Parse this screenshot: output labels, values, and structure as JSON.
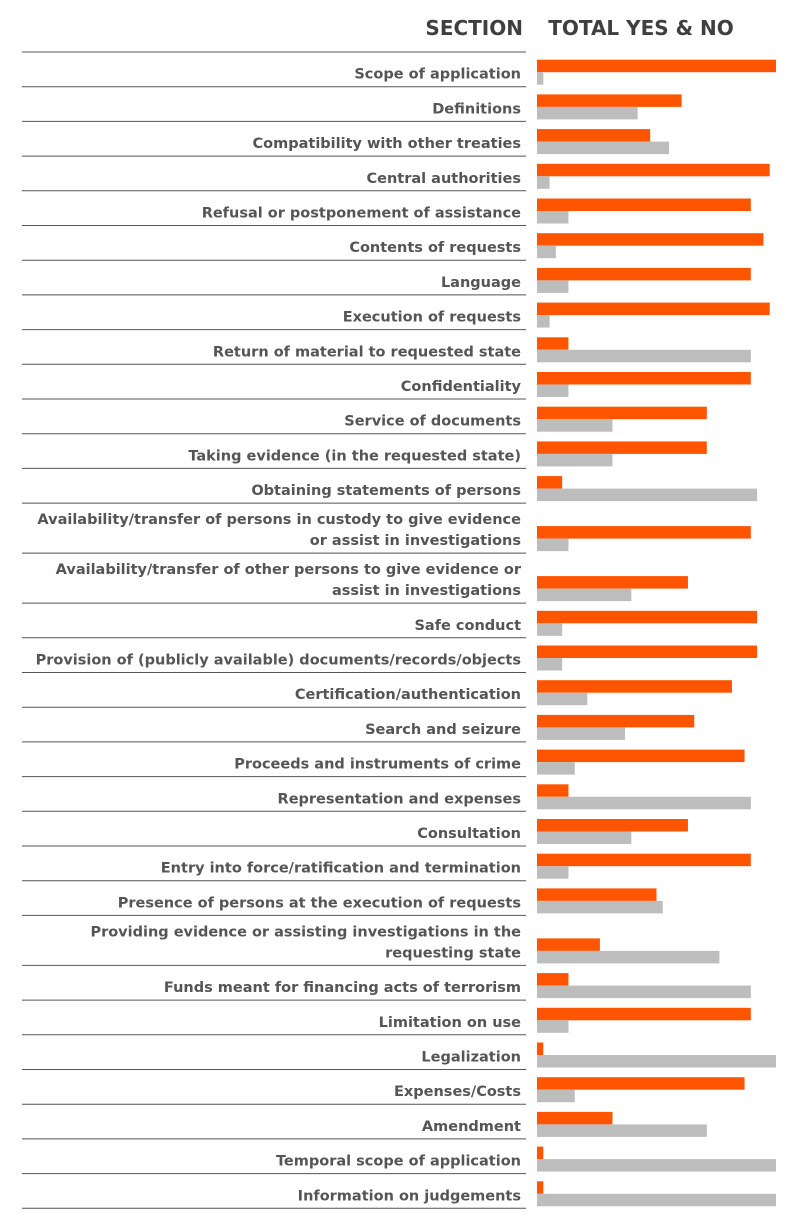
{
  "chart_data": {
    "type": "bar",
    "orientation": "horizontal",
    "header_section": "SECTION",
    "header_total": "TOTAL YES & NO",
    "xlim": [
      0,
      38
    ],
    "grid": false,
    "legend": "none",
    "categories": [
      [
        "Scope of application"
      ],
      [
        "Definitions"
      ],
      [
        "Compatibility with other treaties"
      ],
      [
        "Central authorities"
      ],
      [
        "Refusal or postponement of assistance"
      ],
      [
        "Contents of requests"
      ],
      [
        "Language"
      ],
      [
        "Execution of requests"
      ],
      [
        "Return of material to requested state"
      ],
      [
        "Confidentiality"
      ],
      [
        "Service of documents"
      ],
      [
        "Taking evidence (in the requested state)"
      ],
      [
        "Obtaining statements of persons"
      ],
      [
        "Availability/transfer of persons in custody to give evidence",
        "or assist in investigations"
      ],
      [
        "Availability/transfer of other persons to give evidence or",
        "assist in investigations"
      ],
      [
        "Safe conduct"
      ],
      [
        "Provision of (publicly available) documents/records/objects"
      ],
      [
        "Certification/authentication"
      ],
      [
        "Search and seizure"
      ],
      [
        "Proceeds and instruments of crime"
      ],
      [
        "Representation and expenses"
      ],
      [
        "Consultation"
      ],
      [
        "Entry into force/ratification and termination"
      ],
      [
        "Presence of persons at the execution of requests"
      ],
      [
        "Providing evidence or assisting investigations in the",
        "requesting state"
      ],
      [
        "Funds meant for financing acts of terrorism"
      ],
      [
        "Limitation on use"
      ],
      [
        "Legalization"
      ],
      [
        "Expenses/Costs"
      ],
      [
        "Amendment"
      ],
      [
        "Temporal scope of application"
      ],
      [
        "Information on judgements"
      ]
    ],
    "series": [
      {
        "color": "#ff5500",
        "values": [
          38,
          23,
          18,
          37,
          34,
          36,
          34,
          37,
          5,
          34,
          27,
          27,
          4,
          34,
          24,
          35,
          35,
          31,
          25,
          33,
          5,
          24,
          34,
          19,
          10,
          5,
          34,
          1,
          33,
          12,
          1,
          1
        ]
      },
      {
        "color": "#bdbdbd",
        "values": [
          1,
          16,
          21,
          2,
          5,
          3,
          5,
          2,
          34,
          5,
          12,
          12,
          35,
          5,
          15,
          4,
          4,
          8,
          14,
          6,
          34,
          15,
          5,
          20,
          29,
          34,
          5,
          38,
          6,
          27,
          38,
          38
        ]
      }
    ]
  }
}
